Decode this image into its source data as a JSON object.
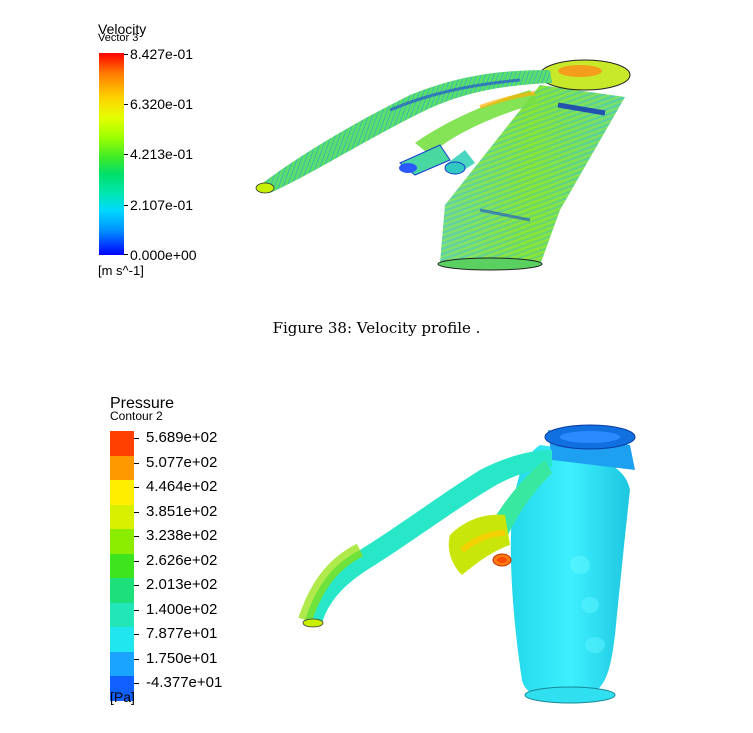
{
  "velocity_figure": {
    "legend": {
      "title": "Velocity",
      "subtitle": "Vector 3",
      "unit": "[m s^-1]",
      "ticks": [
        "8.427e-01",
        "6.320e-01",
        "4.213e-01",
        "2.107e-01",
        "0.000e+00"
      ],
      "scale_min": 0.0,
      "scale_max": 0.8427,
      "colormap": [
        "#0000ff",
        "#0090ff",
        "#00d8ff",
        "#00e6b4",
        "#00e06a",
        "#3cea2a",
        "#9bff00",
        "#e4ff00",
        "#ffd200",
        "#ff7a00",
        "#ff0000"
      ]
    }
  },
  "caption": "Figure 38: Velocity profile .",
  "pressure_figure": {
    "legend": {
      "title": "Pressure",
      "subtitle": "Contour 2",
      "unit": "[Pa]",
      "ticks": [
        "5.689e+02",
        "5.077e+02",
        "4.464e+02",
        "3.851e+02",
        "3.238e+02",
        "2.626e+02",
        "2.013e+02",
        "1.400e+02",
        "7.877e+01",
        "1.750e+01",
        "-4.377e+01"
      ],
      "bands": [
        "#ff4000",
        "#ff9900",
        "#ffee00",
        "#d8f000",
        "#8cec00",
        "#3ee41e",
        "#1ee07a",
        "#22e6b8",
        "#20e6f0",
        "#1aa4ff",
        "#1060ff"
      ]
    }
  }
}
